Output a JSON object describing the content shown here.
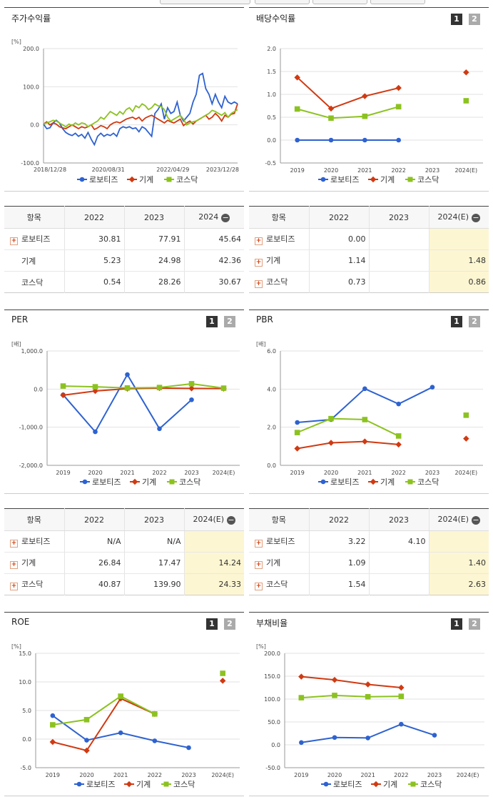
{
  "legend": [
    "로보티즈",
    "기계",
    "코스닥"
  ],
  "colors": {
    "s0": "#2e62d0",
    "s1": "#d03a12",
    "s2": "#8cc220"
  },
  "panels": {
    "stock": {
      "title": "주가수익률"
    },
    "dividend": {
      "title": "배당수익률",
      "btn1": "1",
      "btn2": "2"
    },
    "per": {
      "title": "PER",
      "btn1": "1",
      "btn2": "2"
    },
    "pbr": {
      "title": "PBR",
      "btn1": "1",
      "btn2": "2"
    },
    "roe": {
      "title": "ROE",
      "btn1": "1",
      "btn2": "2"
    },
    "debt": {
      "title": "부채비율",
      "btn1": "1",
      "btn2": "2"
    }
  },
  "chart_data": [
    {
      "id": "stock",
      "type": "line",
      "unit": "[%]",
      "ylim": [
        -100,
        200
      ],
      "yticks": [
        "200.0",
        "100.0",
        "0.0",
        "-100.0"
      ],
      "xticks": [
        "2018/12/28",
        "2020/08/31",
        "2022/04/29",
        "2023/12/28"
      ],
      "series": [
        {
          "name": "로보티즈",
          "values": [
            2,
            -10,
            -8,
            5,
            12,
            5,
            -10,
            -20,
            -25,
            -28,
            -22,
            -30,
            -25,
            -35,
            -20,
            -38,
            -52,
            -30,
            -22,
            -30,
            -25,
            -28,
            -22,
            -30,
            -10,
            -5,
            -8,
            -5,
            -10,
            -8,
            -18,
            -5,
            -10,
            -20,
            -30,
            30,
            40,
            55,
            15,
            45,
            30,
            35,
            60,
            25,
            10,
            20,
            30,
            60,
            80,
            130,
            135,
            95,
            80,
            55,
            80,
            60,
            45,
            75,
            60,
            55,
            60,
            55
          ]
        },
        {
          "name": "기계",
          "values": [
            2,
            8,
            0,
            5,
            2,
            -5,
            -8,
            -10,
            -5,
            0,
            -5,
            -10,
            -5,
            -8,
            -5,
            0,
            -12,
            -8,
            -2,
            -5,
            -10,
            0,
            5,
            8,
            5,
            10,
            15,
            18,
            20,
            15,
            20,
            10,
            18,
            22,
            25,
            20,
            15,
            10,
            5,
            12,
            8,
            5,
            10,
            15,
            -2,
            5,
            10,
            2,
            10,
            15,
            20,
            25,
            15,
            20,
            30,
            22,
            10,
            25,
            20,
            28,
            30,
            55
          ]
        },
        {
          "name": "코스닥",
          "values": [
            2,
            5,
            8,
            12,
            10,
            5,
            0,
            -5,
            2,
            -2,
            5,
            0,
            5,
            3,
            -5,
            0,
            5,
            10,
            20,
            15,
            25,
            35,
            30,
            25,
            35,
            28,
            40,
            45,
            35,
            50,
            45,
            55,
            50,
            40,
            45,
            55,
            50,
            48,
            40,
            20,
            10,
            15,
            20,
            25,
            15,
            0,
            5,
            8,
            10,
            15,
            20,
            25,
            30,
            38,
            35,
            30,
            25,
            32,
            20,
            30,
            35,
            40
          ]
        }
      ]
    },
    {
      "id": "dividend",
      "type": "line",
      "unit": "",
      "ylim": [
        -0.5,
        2.0
      ],
      "yticks": [
        "2.0",
        "1.5",
        "1.0",
        "0.5",
        "0.0",
        "-0.5"
      ],
      "categories": [
        "2019",
        "2020",
        "2021",
        "2022",
        "2023",
        "2024(E)"
      ],
      "series": [
        {
          "name": "로보티즈",
          "values": [
            0.0,
            0.0,
            0.0,
            0.0,
            null,
            null
          ]
        },
        {
          "name": "기계",
          "values": [
            1.37,
            0.69,
            0.96,
            1.14,
            null,
            1.48
          ]
        },
        {
          "name": "코스닥",
          "values": [
            0.68,
            0.48,
            0.52,
            0.73,
            null,
            0.86
          ]
        }
      ]
    },
    {
      "id": "per",
      "type": "line",
      "unit": "[배]",
      "ylim": [
        -2000,
        1000
      ],
      "yticks": [
        "1,000.0",
        "0.0",
        "-1,000.0",
        "-2,000.0"
      ],
      "categories": [
        "2019",
        "2020",
        "2021",
        "2022",
        "2023",
        "2024(E)"
      ],
      "series": [
        {
          "name": "로보티즈",
          "values": [
            -150,
            -1120,
            380,
            -1040,
            -280,
            null
          ]
        },
        {
          "name": "기계",
          "values": [
            -160,
            -50,
            10,
            26.84,
            17.47,
            14.24
          ]
        },
        {
          "name": "코스닥",
          "values": [
            80,
            60,
            30,
            40.87,
            139.9,
            24.33
          ]
        }
      ]
    },
    {
      "id": "pbr",
      "type": "line",
      "unit": "[배]",
      "ylim": [
        0,
        6
      ],
      "yticks": [
        "6.0",
        "4.0",
        "2.0",
        "0.0"
      ],
      "categories": [
        "2019",
        "2020",
        "2021",
        "2022",
        "2023",
        "2024(E)"
      ],
      "series": [
        {
          "name": "로보티즈",
          "values": [
            2.25,
            2.4,
            4.02,
            3.22,
            4.1,
            null
          ]
        },
        {
          "name": "기계",
          "values": [
            0.88,
            1.18,
            1.25,
            1.09,
            null,
            1.4
          ]
        },
        {
          "name": "코스닥",
          "values": [
            1.72,
            2.45,
            2.4,
            1.54,
            null,
            2.63
          ]
        }
      ]
    },
    {
      "id": "roe",
      "type": "line",
      "unit": "[%]",
      "ylim": [
        -5,
        15
      ],
      "yticks": [
        "15.0",
        "10.0",
        "5.0",
        "0.0",
        "-5.0"
      ],
      "categories": [
        "2019",
        "2020",
        "2021",
        "2022",
        "2023",
        "2024(E)"
      ],
      "series": [
        {
          "name": "로보티즈",
          "values": [
            4.1,
            -0.2,
            1.1,
            -0.3,
            -1.5,
            null
          ]
        },
        {
          "name": "기계",
          "values": [
            -0.5,
            -2.0,
            7.1,
            4.4,
            null,
            10.2
          ]
        },
        {
          "name": "코스닥",
          "values": [
            2.5,
            3.4,
            7.5,
            4.4,
            null,
            11.5
          ]
        }
      ]
    },
    {
      "id": "debt",
      "type": "line",
      "unit": "[%]",
      "ylim": [
        -50,
        200
      ],
      "yticks": [
        "200.0",
        "150.0",
        "100.0",
        "50.0",
        "0.0",
        "-50.0"
      ],
      "categories": [
        "2019",
        "2020",
        "2021",
        "2022",
        "2023",
        "2024(E)"
      ],
      "series": [
        {
          "name": "로보티즈",
          "values": [
            5,
            16,
            15,
            45,
            21,
            null
          ]
        },
        {
          "name": "기계",
          "values": [
            149,
            142,
            132,
            125,
            null,
            null
          ]
        },
        {
          "name": "코스닥",
          "values": [
            103,
            108,
            105,
            106,
            null,
            null
          ]
        }
      ]
    }
  ],
  "tables": {
    "stock": {
      "header": [
        "항목",
        "2022",
        "2023",
        "2024"
      ],
      "rows": [
        {
          "label": "로보티즈",
          "plus": true,
          "cells": [
            "30.81",
            "77.91",
            "45.64"
          ]
        },
        {
          "label": "기계",
          "plus": false,
          "cells": [
            "5.23",
            "24.98",
            "42.36"
          ]
        },
        {
          "label": "코스닥",
          "plus": false,
          "cells": [
            "0.54",
            "28.26",
            "30.67"
          ]
        }
      ]
    },
    "dividend": {
      "header": [
        "항목",
        "2022",
        "2023",
        "2024(E)"
      ],
      "rows": [
        {
          "label": "로보티즈",
          "plus": true,
          "cells": [
            "0.00",
            "",
            ""
          ]
        },
        {
          "label": "기계",
          "plus": true,
          "cells": [
            "1.14",
            "",
            "1.48"
          ]
        },
        {
          "label": "코스닥",
          "plus": true,
          "cells": [
            "0.73",
            "",
            "0.86"
          ]
        }
      ]
    },
    "per": {
      "header": [
        "항목",
        "2022",
        "2023",
        "2024(E)"
      ],
      "rows": [
        {
          "label": "로보티즈",
          "plus": true,
          "cells": [
            "N/A",
            "N/A",
            ""
          ]
        },
        {
          "label": "기계",
          "plus": true,
          "cells": [
            "26.84",
            "17.47",
            "14.24"
          ]
        },
        {
          "label": "코스닥",
          "plus": true,
          "cells": [
            "40.87",
            "139.90",
            "24.33"
          ]
        }
      ]
    },
    "pbr": {
      "header": [
        "항목",
        "2022",
        "2023",
        "2024(E)"
      ],
      "rows": [
        {
          "label": "로보티즈",
          "plus": true,
          "cells": [
            "3.22",
            "4.10",
            ""
          ]
        },
        {
          "label": "기계",
          "plus": true,
          "cells": [
            "1.09",
            "",
            "1.40"
          ]
        },
        {
          "label": "코스닥",
          "plus": true,
          "cells": [
            "1.54",
            "",
            "2.63"
          ]
        }
      ]
    }
  }
}
